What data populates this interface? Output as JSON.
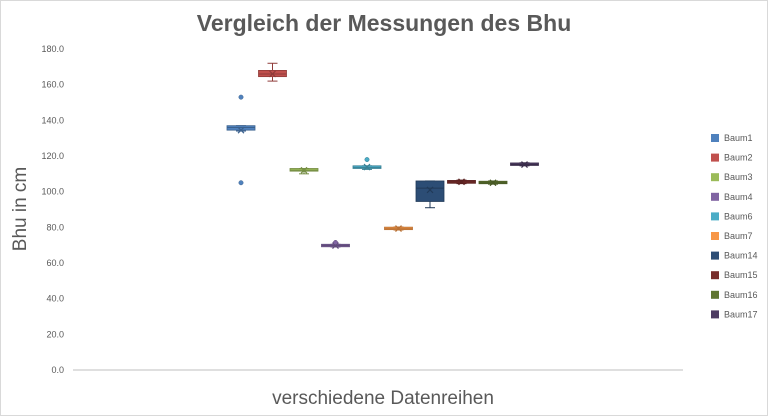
{
  "chart_data": {
    "type": "box",
    "title": "Vergleich der Messungen des Bhu",
    "xlabel": "verschiedene Datenreihen",
    "ylabel": "Bhu in cm",
    "ylim": [
      0,
      180
    ],
    "ytick_step": 20,
    "ytick_labels": [
      "0.0",
      "20.0",
      "40.0",
      "60.0",
      "80.0",
      "100.0",
      "120.0",
      "140.0",
      "160.0",
      "180.0"
    ],
    "grid": false,
    "legend_position": "right",
    "series": [
      {
        "name": "Baum1",
        "color": "#4f81bd",
        "min": 134,
        "q1": 134.5,
        "median": 136,
        "q3": 137,
        "max": 137,
        "mean": 134.5,
        "outliers": [
          153,
          105
        ]
      },
      {
        "name": "Baum2",
        "color": "#c0504d",
        "min": 162,
        "q1": 164.5,
        "median": 166,
        "q3": 168,
        "max": 172,
        "mean": 166,
        "outliers": []
      },
      {
        "name": "Baum3",
        "color": "#9bbb59",
        "min": 110,
        "q1": 111.5,
        "median": 112,
        "q3": 113,
        "max": 113,
        "mean": 112,
        "outliers": []
      },
      {
        "name": "Baum4",
        "color": "#8064a2",
        "min": 69,
        "q1": 69.3,
        "median": 69.8,
        "q3": 70.3,
        "max": 70.5,
        "mean": 69.8,
        "outliers": [
          71.5
        ]
      },
      {
        "name": "Baum6",
        "color": "#4bacc6",
        "min": 112.5,
        "q1": 113,
        "median": 113.5,
        "q3": 114.5,
        "max": 114.5,
        "mean": 113.8,
        "outliers": [
          118
        ]
      },
      {
        "name": "Baum7",
        "color": "#f79646",
        "min": 78.5,
        "q1": 78.8,
        "median": 79.2,
        "q3": 80,
        "max": 80.2,
        "mean": 79.3,
        "outliers": []
      },
      {
        "name": "Baum14",
        "color": "#2c4d75",
        "min": 91,
        "q1": 94.5,
        "median": 102,
        "q3": 106,
        "max": 106,
        "mean": 101,
        "outliers": []
      },
      {
        "name": "Baum15",
        "color": "#772c2a",
        "min": 104.5,
        "q1": 104.7,
        "median": 105.5,
        "q3": 106.3,
        "max": 106.5,
        "mean": 105.5,
        "outliers": []
      },
      {
        "name": "Baum16",
        "color": "#5f7530",
        "min": 104.2,
        "q1": 104.5,
        "median": 105,
        "q3": 105.8,
        "max": 106,
        "mean": 105,
        "outliers": []
      },
      {
        "name": "Baum17",
        "color": "#4d3b62",
        "min": 114.5,
        "q1": 114.8,
        "median": 115.2,
        "q3": 116,
        "max": 116.2,
        "mean": 115.2,
        "outliers": []
      }
    ]
  }
}
